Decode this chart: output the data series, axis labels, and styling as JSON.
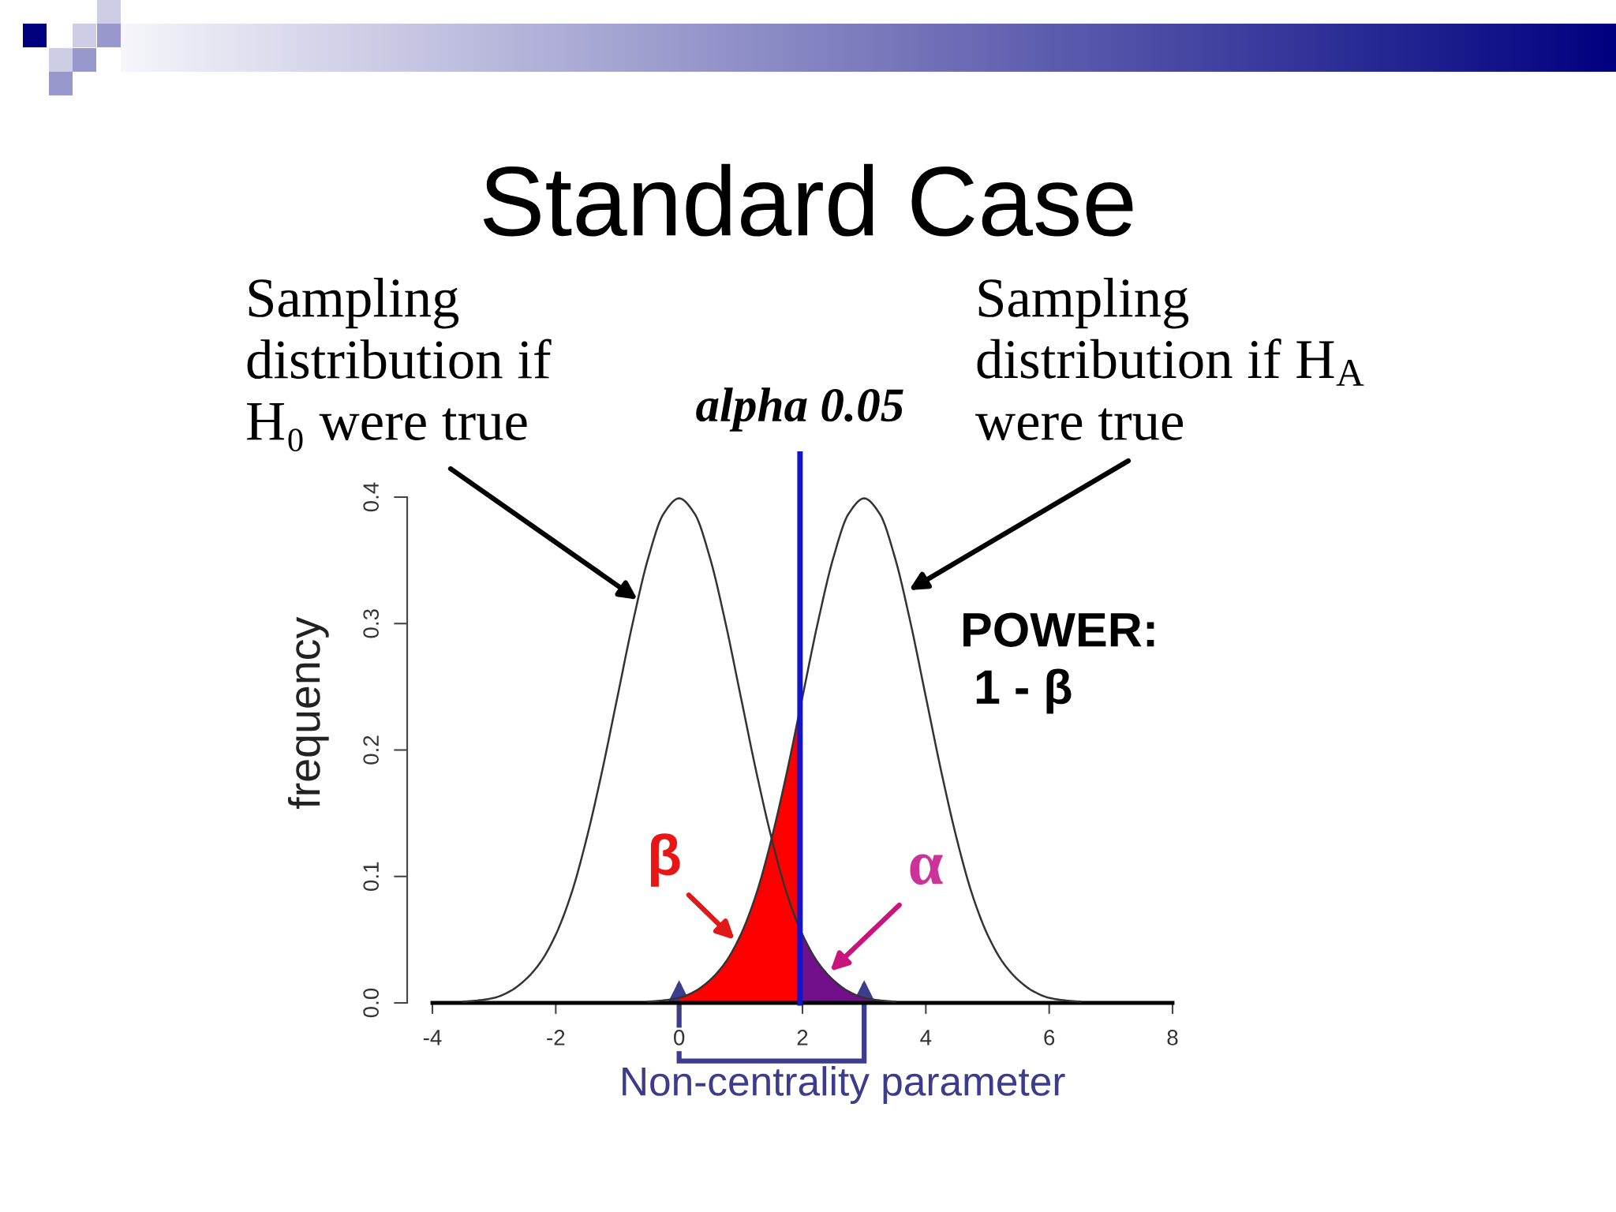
{
  "chart_data": {
    "type": "line",
    "title": "Standard Case",
    "xlabel": "Non-centrality parameter",
    "ylabel": "frequency",
    "xlim": [
      -4,
      8
    ],
    "ylim": [
      0,
      0.4
    ],
    "xticks": [
      -4,
      -2,
      0,
      2,
      4,
      6,
      8
    ],
    "yticks": [
      {
        "value": 0,
        "label": "0.0"
      },
      0.1,
      0.2,
      0.3,
      0.4
    ],
    "series": [
      {
        "color": "#333333",
        "x": [
          -3.5,
          -3.25,
          -3,
          -2.75,
          -2.5,
          -2.25,
          -2,
          -1.75,
          -1.5,
          -1.25,
          -1,
          -0.75,
          -0.5,
          -0.25,
          0,
          0.25,
          0.5,
          0.75,
          1,
          1.25,
          1.5,
          1.75,
          2,
          2.25,
          2.5,
          2.75,
          3,
          3.25,
          3.5
        ],
        "values": [
          0.001,
          0.002,
          0.004,
          0.009,
          0.018,
          0.032,
          0.054,
          0.086,
          0.13,
          0.183,
          0.242,
          0.301,
          0.352,
          0.387,
          0.399,
          0.387,
          0.352,
          0.301,
          0.242,
          0.183,
          0.13,
          0.086,
          0.054,
          0.032,
          0.018,
          0.009,
          0.004,
          0.002,
          0.001
        ]
      },
      {
        "color": "#333333",
        "x": [
          -0.5,
          -0.25,
          0,
          0.25,
          0.5,
          0.75,
          1,
          1.25,
          1.5,
          1.75,
          2,
          2.25,
          2.5,
          2.75,
          3,
          3.25,
          3.5,
          3.75,
          4,
          4.25,
          4.5,
          4.75,
          5,
          5.25,
          5.5,
          5.75,
          6,
          6.25,
          6.5
        ],
        "values": [
          0.001,
          0.002,
          0.004,
          0.009,
          0.018,
          0.032,
          0.054,
          0.086,
          0.13,
          0.183,
          0.242,
          0.301,
          0.352,
          0.387,
          0.399,
          0.387,
          0.352,
          0.301,
          0.242,
          0.183,
          0.13,
          0.086,
          0.054,
          0.032,
          0.018,
          0.009,
          0.004,
          0.002,
          0.001
        ]
      },
      {
        "type": "area",
        "color": "#ff0000",
        "x": [
          0,
          0.25,
          0.5,
          0.75,
          1,
          1.25,
          1.5,
          1.75,
          1.96
        ],
        "values": [
          0.004,
          0.009,
          0.018,
          0.032,
          0.054,
          0.086,
          0.13,
          0.183,
          0.232
        ]
      },
      {
        "type": "area",
        "color": "#72108c",
        "x": [
          1.96,
          2,
          2.25,
          2.5,
          2.75,
          3,
          3.25
        ],
        "values": [
          0.058,
          0.054,
          0.032,
          0.018,
          0.009,
          0.004,
          0.002
        ]
      }
    ],
    "ref_lines": [
      {
        "axis": "x",
        "value": 1.96,
        "label": "alpha 0.05",
        "color": "#1515c8"
      }
    ],
    "annotations": [
      "Sampling\ndistribution if\nH₀ were true",
      "Sampling\ndistribution if H$_{A}$\nwere true",
      {
        "text": "β",
        "x": 0.9,
        "y": 0.05
      },
      {
        "text": "α",
        "x": 2.45,
        "y": 0.025
      },
      "POWER:\n 1 - β"
    ],
    "grid": false
  }
}
